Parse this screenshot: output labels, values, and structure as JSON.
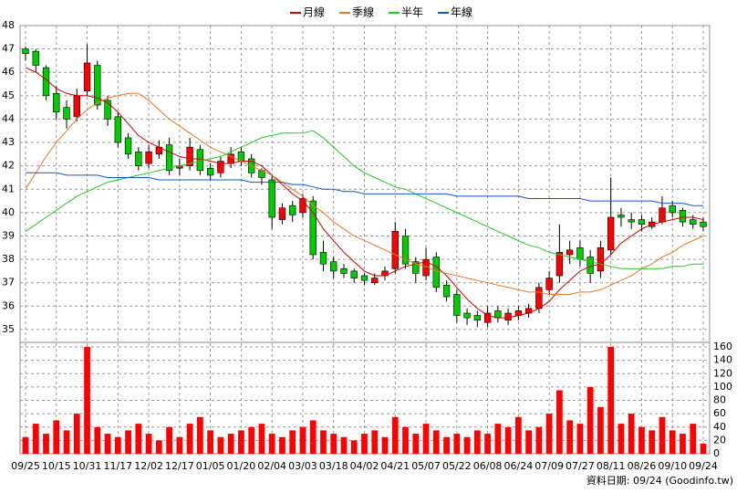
{
  "chart_data": {
    "type": "candlestick",
    "legend_position": "top",
    "grid": true,
    "up_color": "#ff0000",
    "down_color": "#00cc00",
    "volume_color": "#ff0000",
    "footer": "資料日期: 09/24 (Goodinfo.tw)",
    "categories": [
      "09/25",
      null,
      null,
      "10/15",
      null,
      null,
      "10/31",
      null,
      null,
      "11/17",
      null,
      null,
      "12/02",
      null,
      null,
      "12/17",
      null,
      null,
      "01/05",
      null,
      null,
      "01/20",
      null,
      null,
      "02/04",
      null,
      null,
      "03/03",
      null,
      null,
      "03/18",
      null,
      null,
      "04/02",
      null,
      null,
      "04/21",
      null,
      null,
      "05/07",
      null,
      null,
      "05/22",
      null,
      null,
      "06/08",
      null,
      null,
      "06/24",
      null,
      null,
      "07/09",
      null,
      null,
      "07/27",
      null,
      null,
      "08/11",
      null,
      null,
      "08/26",
      null,
      null,
      "09/10",
      null,
      null,
      "09/24"
    ],
    "open": [
      47.0,
      46.9,
      46.2,
      45.1,
      44.5,
      44.1,
      45.2,
      46.3,
      44.8,
      44.1,
      43.2,
      42.6,
      42.1,
      42.5,
      42.9,
      41.9,
      42.0,
      42.7,
      41.9,
      41.7,
      42.1,
      42.6,
      42.3,
      41.8,
      41.4,
      39.7,
      40.3,
      40.0,
      40.5,
      38.3,
      37.9,
      37.6,
      37.5,
      37.3,
      37.0,
      37.3,
      37.6,
      39.0,
      37.9,
      37.3,
      38.1,
      36.9,
      36.5,
      35.7,
      35.6,
      35.3,
      35.8,
      35.4,
      35.6,
      35.7,
      35.9,
      36.7,
      37.3,
      38.2,
      38.5,
      38.1,
      37.5,
      38.4,
      39.9,
      39.7,
      39.7,
      39.4,
      39.6,
      40.3,
      40.1,
      39.7,
      39.6
    ],
    "high": [
      47.1,
      47.0,
      46.3,
      45.4,
      44.8,
      45.3,
      47.2,
      46.5,
      45.0,
      44.3,
      43.4,
      42.8,
      42.9,
      43.1,
      43.2,
      42.3,
      43.2,
      42.9,
      42.1,
      42.4,
      42.8,
      42.8,
      42.5,
      41.9,
      41.6,
      40.4,
      40.5,
      40.8,
      40.7,
      38.8,
      38.1,
      37.8,
      37.6,
      37.4,
      37.4,
      37.7,
      39.6,
      39.3,
      38.1,
      38.5,
      38.3,
      37.1,
      36.7,
      35.9,
      35.8,
      36.0,
      36.0,
      35.9,
      36.0,
      36.1,
      37.0,
      37.5,
      39.5,
      38.8,
      38.8,
      38.4,
      38.8,
      41.5,
      40.2,
      40.0,
      39.9,
      39.8,
      40.7,
      40.5,
      40.2,
      39.9,
      39.8
    ],
    "low": [
      46.5,
      46.0,
      44.8,
      44.0,
      43.6,
      43.9,
      45.0,
      44.4,
      43.7,
      42.8,
      42.3,
      41.8,
      41.9,
      42.3,
      41.6,
      41.6,
      41.8,
      41.6,
      41.4,
      41.5,
      41.9,
      42.0,
      41.5,
      41.2,
      39.3,
      39.5,
      39.6,
      39.8,
      38.0,
      37.5,
      37.2,
      37.2,
      37.0,
      36.9,
      36.9,
      37.1,
      37.4,
      37.6,
      37.0,
      37.1,
      36.6,
      36.2,
      35.3,
      35.2,
      35.1,
      35.1,
      35.3,
      35.2,
      35.4,
      35.5,
      35.7,
      36.5,
      37.0,
      37.8,
      37.7,
      37.0,
      37.2,
      38.2,
      39.4,
      39.3,
      39.2,
      39.3,
      39.5,
      39.8,
      39.4,
      39.3,
      39.2
    ],
    "close": [
      46.8,
      46.3,
      45.0,
      44.3,
      44.0,
      45.0,
      46.4,
      44.6,
      44.0,
      43.0,
      42.5,
      42.0,
      42.6,
      42.8,
      41.8,
      42.0,
      42.8,
      41.8,
      41.6,
      42.2,
      42.5,
      42.2,
      41.7,
      41.5,
      39.8,
      40.2,
      39.9,
      40.6,
      38.2,
      37.8,
      37.5,
      37.4,
      37.2,
      37.1,
      37.2,
      37.5,
      39.2,
      37.8,
      37.4,
      38.0,
      36.8,
      36.4,
      35.6,
      35.5,
      35.4,
      35.7,
      35.5,
      35.7,
      35.8,
      35.9,
      36.8,
      37.2,
      38.3,
      38.4,
      38.0,
      37.4,
      38.5,
      39.8,
      39.8,
      39.6,
      39.5,
      39.6,
      40.2,
      40.0,
      39.6,
      39.5,
      39.4
    ],
    "volume": [
      25,
      45,
      30,
      50,
      35,
      60,
      160,
      40,
      30,
      25,
      35,
      45,
      30,
      20,
      40,
      25,
      45,
      55,
      35,
      25,
      30,
      35,
      40,
      45,
      30,
      25,
      35,
      40,
      50,
      35,
      30,
      25,
      20,
      30,
      35,
      25,
      55,
      40,
      30,
      45,
      35,
      25,
      30,
      25,
      35,
      30,
      45,
      40,
      55,
      35,
      40,
      60,
      95,
      50,
      45,
      100,
      70,
      160,
      45,
      60,
      40,
      35,
      55,
      35,
      30,
      45,
      15
    ],
    "series": [
      {
        "name": "月線",
        "color": "#cc0000",
        "values": [
          46.2,
          46.0,
          45.7,
          45.3,
          45.1,
          45.0,
          45.0,
          44.9,
          44.7,
          44.3,
          43.8,
          43.3,
          43.0,
          42.8,
          42.6,
          42.4,
          42.3,
          42.3,
          42.2,
          42.1,
          42.1,
          42.2,
          42.2,
          42.0,
          41.6,
          41.2,
          40.8,
          40.5,
          40.0,
          39.3,
          38.8,
          38.3,
          37.9,
          37.5,
          37.3,
          37.3,
          37.5,
          37.7,
          37.8,
          37.9,
          37.7,
          37.3,
          36.8,
          36.3,
          35.9,
          35.6,
          35.5,
          35.5,
          35.6,
          35.7,
          35.9,
          36.2,
          36.7,
          37.1,
          37.5,
          37.7,
          37.8,
          38.2,
          38.7,
          39.0,
          39.3,
          39.5,
          39.6,
          39.7,
          39.8,
          39.8,
          39.7
        ]
      },
      {
        "name": "季線",
        "color": "#ee7722",
        "values": [
          41.0,
          41.7,
          42.4,
          43.0,
          43.5,
          44.0,
          44.4,
          44.7,
          44.9,
          45.0,
          45.1,
          45.1,
          44.8,
          44.4,
          44.0,
          43.7,
          43.4,
          43.1,
          42.8,
          42.6,
          42.4,
          42.2,
          42.0,
          41.8,
          41.6,
          41.3,
          41.0,
          40.7,
          40.3,
          40.0,
          39.6,
          39.3,
          39.0,
          38.8,
          38.6,
          38.4,
          38.2,
          38.0,
          37.8,
          37.7,
          37.5,
          37.4,
          37.3,
          37.2,
          37.1,
          37.0,
          36.9,
          36.8,
          36.7,
          36.6,
          36.6,
          36.5,
          36.5,
          36.5,
          36.6,
          36.6,
          36.7,
          36.9,
          37.1,
          37.3,
          37.6,
          37.8,
          38.1,
          38.3,
          38.6,
          38.8,
          39.0
        ]
      },
      {
        "name": "半年",
        "color": "#22cc22",
        "values": [
          39.2,
          39.5,
          39.8,
          40.1,
          40.4,
          40.7,
          40.9,
          41.1,
          41.3,
          41.4,
          41.5,
          41.6,
          41.7,
          41.8,
          41.9,
          42.0,
          42.1,
          42.2,
          42.3,
          42.4,
          42.6,
          42.8,
          43.0,
          43.2,
          43.3,
          43.4,
          43.4,
          43.4,
          43.5,
          43.2,
          42.8,
          42.4,
          42.0,
          41.7,
          41.5,
          41.3,
          41.1,
          41.0,
          40.8,
          40.6,
          40.4,
          40.2,
          40.0,
          39.8,
          39.6,
          39.4,
          39.2,
          39.0,
          38.8,
          38.6,
          38.5,
          38.3,
          38.2,
          38.1,
          38.0,
          37.9,
          37.8,
          37.7,
          37.6,
          37.6,
          37.6,
          37.6,
          37.6,
          37.7,
          37.7,
          37.8,
          37.8
        ]
      },
      {
        "name": "年線",
        "color": "#1155cc",
        "values": [
          41.7,
          41.7,
          41.7,
          41.7,
          41.6,
          41.6,
          41.6,
          41.6,
          41.5,
          41.5,
          41.5,
          41.5,
          41.5,
          41.4,
          41.4,
          41.4,
          41.4,
          41.4,
          41.4,
          41.4,
          41.4,
          41.4,
          41.3,
          41.3,
          41.3,
          41.3,
          41.2,
          41.2,
          41.1,
          41.0,
          41.0,
          40.9,
          40.9,
          40.8,
          40.8,
          40.8,
          40.8,
          40.8,
          40.8,
          40.8,
          40.8,
          40.8,
          40.7,
          40.7,
          40.7,
          40.7,
          40.7,
          40.7,
          40.7,
          40.6,
          40.6,
          40.6,
          40.6,
          40.6,
          40.6,
          40.5,
          40.5,
          40.5,
          40.5,
          40.5,
          40.5,
          40.5,
          40.4,
          40.4,
          40.4,
          40.3,
          40.3
        ]
      }
    ],
    "ylim": [
      34.45,
      48
    ],
    "yticks": [
      35,
      36,
      37,
      38,
      39,
      40,
      41,
      42,
      43,
      44,
      45,
      46,
      47,
      48
    ],
    "y2lim": [
      0,
      160
    ],
    "y2ticks": [
      0,
      20,
      40,
      60,
      80,
      100,
      120,
      140,
      160
    ]
  }
}
